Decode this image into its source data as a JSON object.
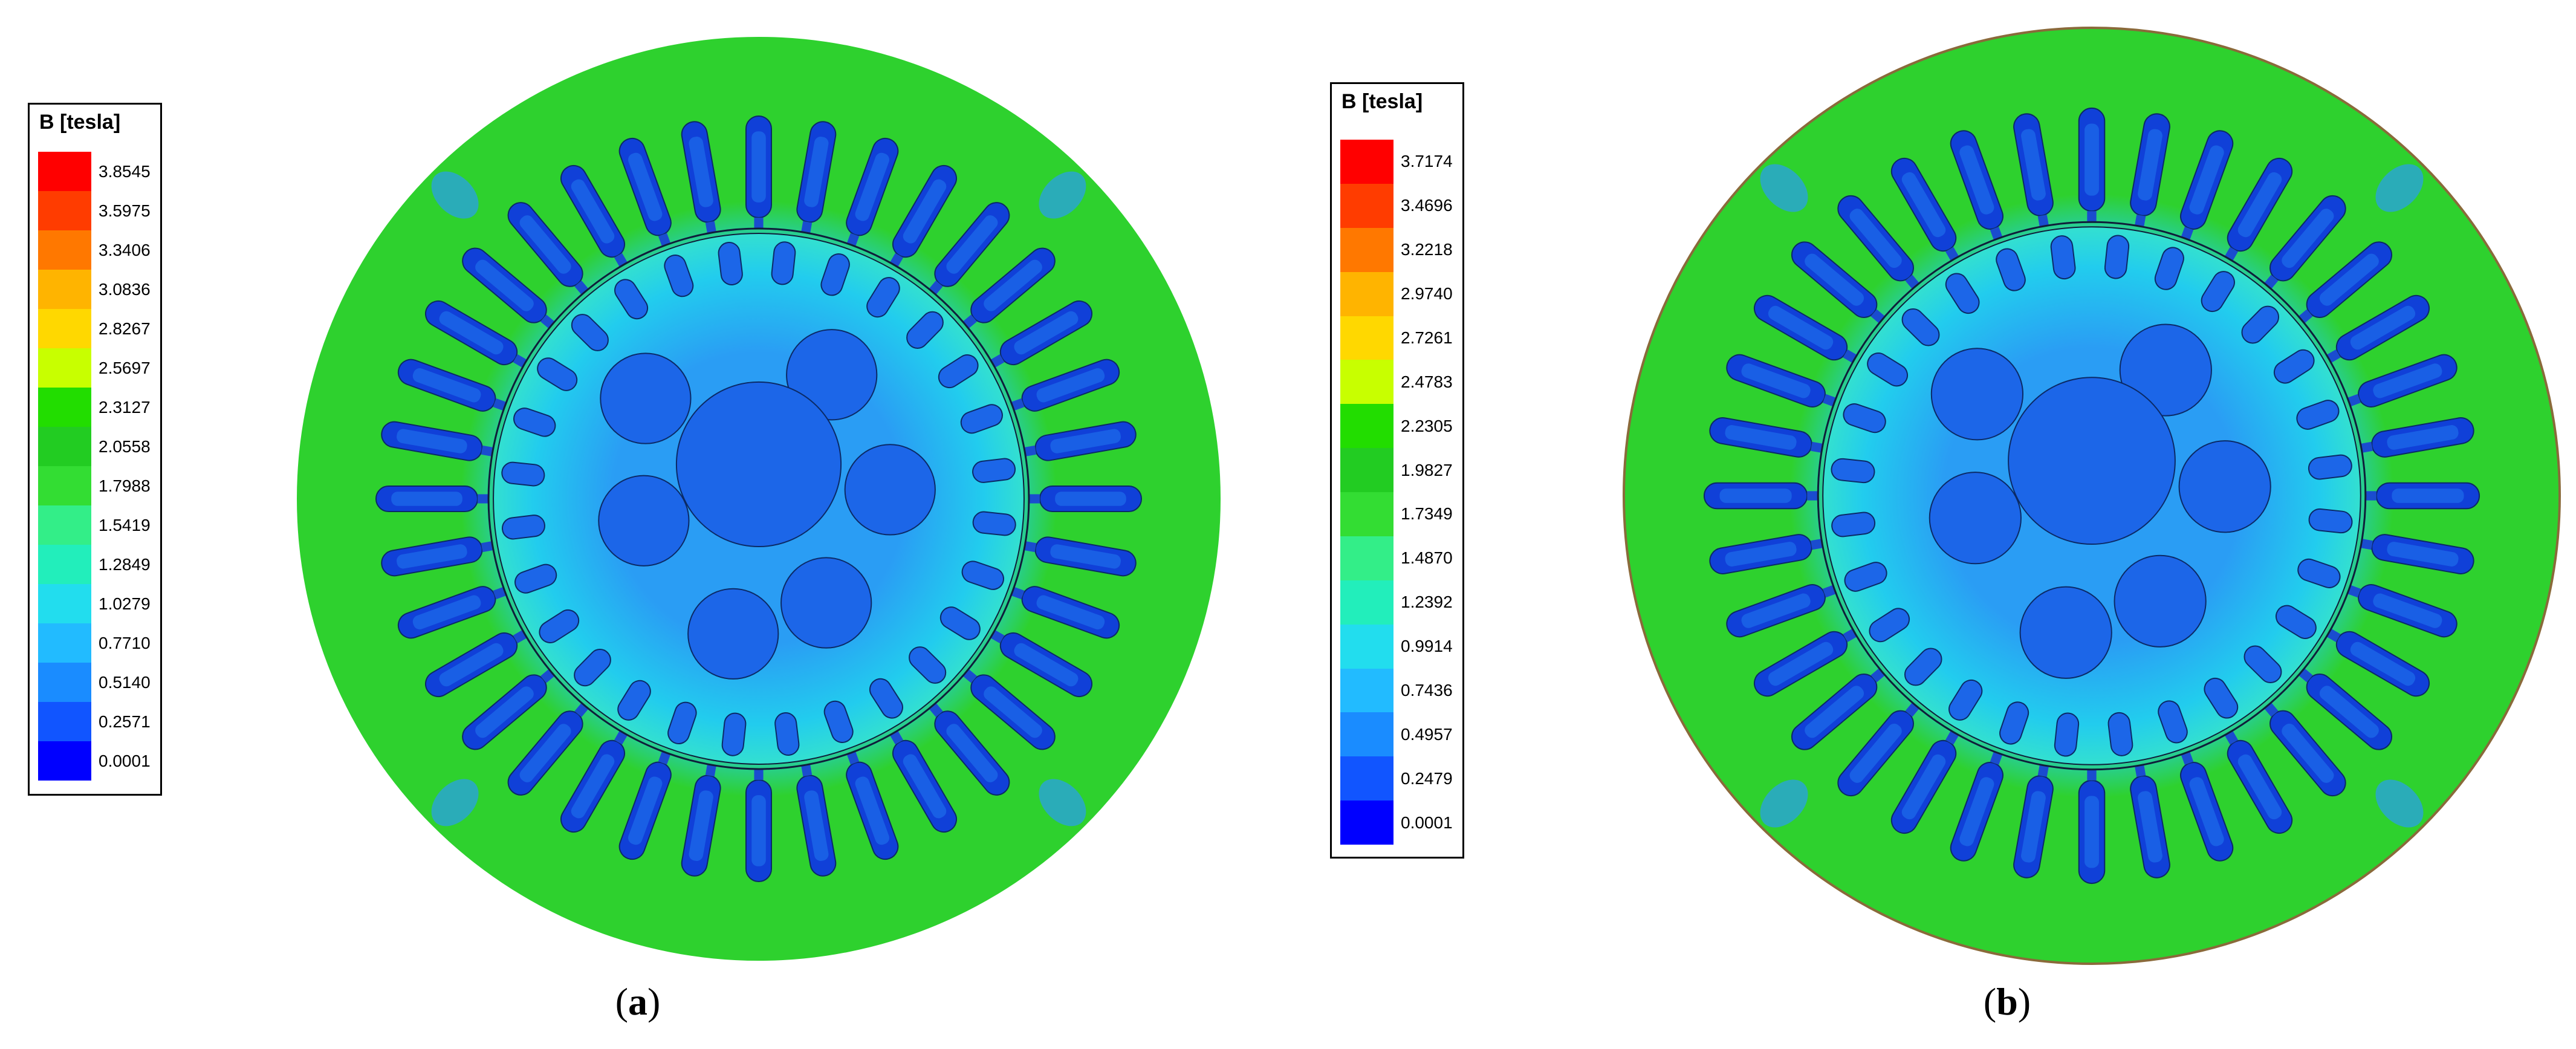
{
  "panels": [
    {
      "id": "a",
      "legend_title": "B [tesla]",
      "caption_letter": "a",
      "legend_values": [
        "3.8545",
        "3.5975",
        "3.3406",
        "3.0836",
        "2.8267",
        "2.5697",
        "2.3127",
        "2.0558",
        "1.7988",
        "1.5419",
        "1.2849",
        "1.0279",
        "0.7710",
        "0.5140",
        "0.2571",
        "0.0001"
      ],
      "n_slots": 36,
      "n_rotor_slots": 28
    },
    {
      "id": "b",
      "legend_title": "B [tesla]",
      "caption_letter": "b",
      "legend_values": [
        "3.7174",
        "3.4696",
        "3.2218",
        "2.9740",
        "2.7261",
        "2.4783",
        "2.2305",
        "1.9827",
        "1.7349",
        "1.4870",
        "1.2392",
        "0.9914",
        "0.7436",
        "0.4957",
        "0.2479",
        "0.0001"
      ],
      "n_slots": 36,
      "n_rotor_slots": 28
    }
  ],
  "colors": {
    "scale": [
      "#ff0000",
      "#ff3c00",
      "#ff7800",
      "#ffb400",
      "#ffd800",
      "#c8ff00",
      "#22dd00",
      "#22cc22",
      "#33dd33",
      "#33ee88",
      "#22eebb",
      "#22ddee",
      "#22bbff",
      "#1a8cff",
      "#1155ff",
      "#0000ff"
    ],
    "outer_green": "#2ed12e",
    "cyan": "#22ccee",
    "light_blue": "#2a9df4",
    "blue": "#1c66e8",
    "deep_blue": "#1040d8"
  },
  "caption_format": "(X)"
}
